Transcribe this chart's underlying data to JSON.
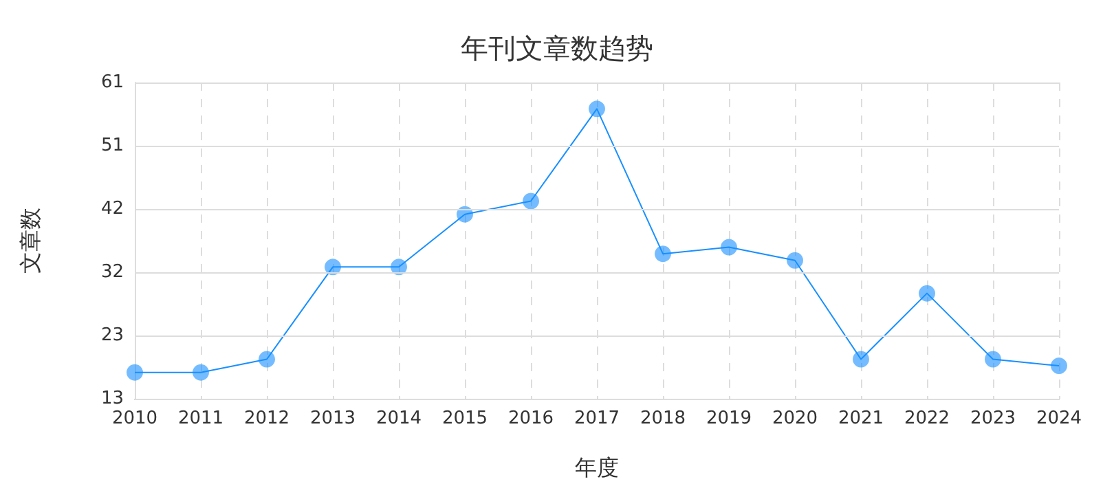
{
  "chart_data": {
    "type": "line",
    "title": "年刊文章数趋势",
    "xlabel": "年度",
    "ylabel": "文章数",
    "categories": [
      "2010",
      "2011",
      "2012",
      "2013",
      "2014",
      "2015",
      "2016",
      "2017",
      "2018",
      "2019",
      "2020",
      "2021",
      "2022",
      "2023",
      "2024"
    ],
    "series": [
      {
        "color": "#1890ff",
        "values": [
          17,
          17,
          19,
          33,
          33,
          41,
          43,
          57,
          35,
          36,
          34,
          19,
          29,
          19,
          18
        ]
      }
    ],
    "ylim": [
      13,
      61
    ],
    "yticks": [
      13,
      {
        "value": 22.6,
        "label": "23"
      },
      {
        "value": 32.2,
        "label": "32"
      },
      {
        "value": 41.8,
        "label": "42"
      },
      {
        "value": 51.4,
        "label": "51"
      },
      61
    ],
    "grid": true,
    "marker": "circle",
    "line_style": "solid"
  }
}
